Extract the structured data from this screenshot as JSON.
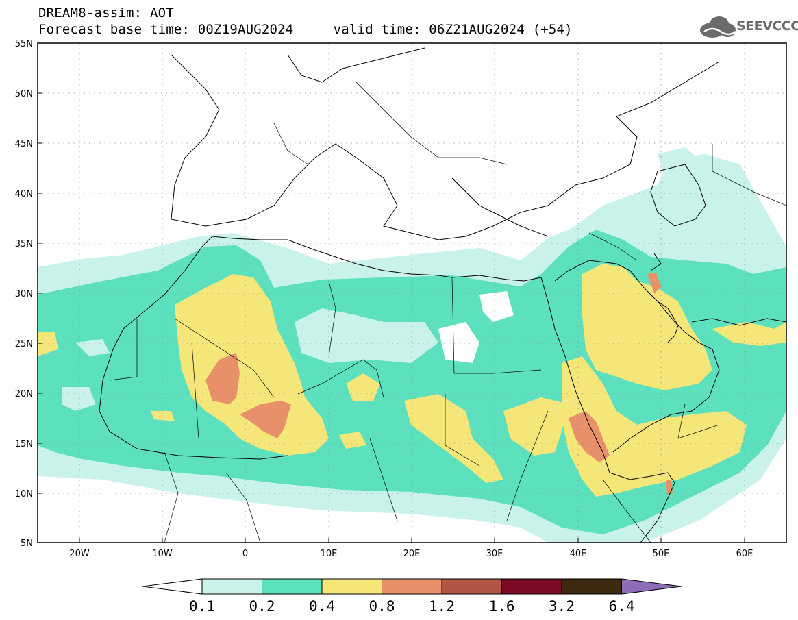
{
  "header": {
    "model_line": "DREAM8-assim: AOT",
    "forecast_line": "Forecast base time: 00Z19AUG2024     valid time: 06Z21AUG2024 (+54)"
  },
  "logo": {
    "text": "SEEVCCC",
    "icon": "cloud-logo-icon",
    "color": "#6b6b6b"
  },
  "map": {
    "lon_range": [
      -25,
      65
    ],
    "lat_range": [
      5,
      55
    ],
    "lat_ticks": [
      "5N",
      "10N",
      "15N",
      "20N",
      "25N",
      "30N",
      "35N",
      "40N",
      "45N",
      "50N",
      "55N"
    ],
    "lon_ticks": [
      "20W",
      "10W",
      "0",
      "10E",
      "20E",
      "30E",
      "40E",
      "50E",
      "60E"
    ],
    "gridlines": "dotted"
  },
  "colorbar": {
    "labels": [
      "0.1",
      "0.2",
      "0.4",
      "0.8",
      "1.2",
      "1.6",
      "3.2",
      "6.4"
    ],
    "colors": [
      "#c8f2ea",
      "#5ce0bd",
      "#f5e67a",
      "#e8906a",
      "#b15545",
      "#7c0a25",
      "#3d2a10",
      "#8f6cb8"
    ],
    "extend": "both"
  }
}
